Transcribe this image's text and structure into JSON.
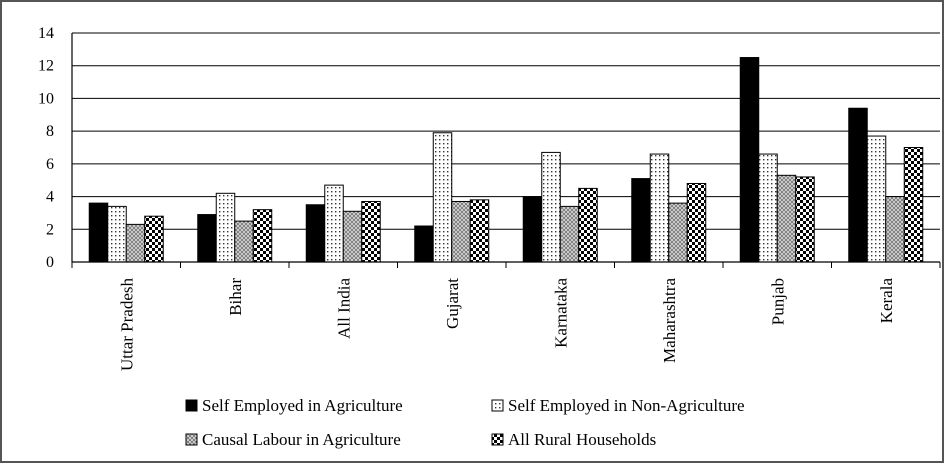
{
  "chart_data": {
    "type": "bar",
    "categories": [
      "Uttar Pradesh",
      "Bihar",
      "All India",
      "Gujarat",
      "Karnataka",
      "Maharashtra",
      "Punjab",
      "Kerala"
    ],
    "series": [
      {
        "name": "Self Employed in Agriculture",
        "values": [
          3.6,
          2.9,
          3.5,
          2.2,
          4.0,
          5.1,
          12.5,
          9.4
        ],
        "pattern": "solid",
        "color": "#000000"
      },
      {
        "name": "Self Employed in Non-Agriculture",
        "values": [
          3.4,
          4.2,
          4.7,
          7.9,
          6.7,
          6.6,
          6.6,
          7.7
        ],
        "pattern": "dots",
        "color": "#ffffff"
      },
      {
        "name": "Causal Labour in Agriculture",
        "values": [
          2.3,
          2.5,
          3.1,
          3.7,
          3.4,
          3.6,
          5.3,
          4.0
        ],
        "pattern": "crosshatch",
        "color": "#7a7a7a"
      },
      {
        "name": "All Rural Households",
        "values": [
          2.8,
          3.2,
          3.7,
          3.8,
          4.5,
          4.8,
          5.2,
          7.0
        ],
        "pattern": "checker",
        "color": "#000000"
      }
    ],
    "title": "",
    "xlabel": "",
    "ylabel": "",
    "ylim": [
      0,
      14
    ],
    "yticks": [
      "0",
      "2",
      "4",
      "6",
      "8",
      "10",
      "12",
      "14"
    ],
    "grid": true,
    "legend_position": "bottom"
  }
}
